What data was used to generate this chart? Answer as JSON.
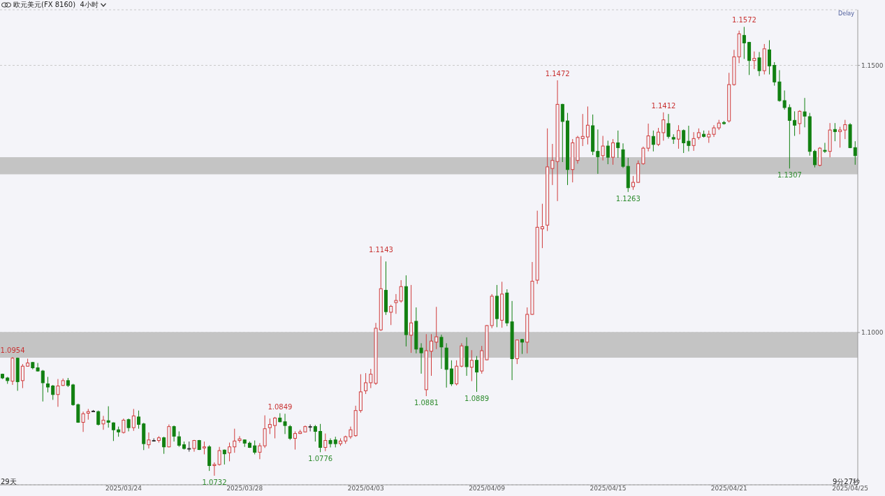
{
  "chart_data": {
    "type": "candlestick",
    "title": "欧元美元(FX 8160)  4小时",
    "categories": [
      null,
      null,
      null,
      null,
      null,
      null,
      null,
      null,
      null,
      null,
      null,
      null,
      null,
      null,
      null,
      null,
      null,
      null,
      null,
      null,
      null,
      null,
      null,
      null,
      "2025/03/24",
      null,
      null,
      null,
      null,
      null,
      null,
      null,
      null,
      null,
      null,
      null,
      null,
      null,
      null,
      null,
      null,
      null,
      null,
      null,
      null,
      null,
      null,
      null,
      "2025/03/28",
      null,
      null,
      null,
      null,
      null,
      null,
      null,
      null,
      null,
      null,
      null,
      null,
      null,
      null,
      null,
      null,
      null,
      null,
      null,
      null,
      null,
      null,
      null,
      "2025/04/03",
      null,
      null,
      null,
      null,
      null,
      null,
      null,
      null,
      null,
      null,
      null,
      null,
      null,
      null,
      null,
      null,
      null,
      null,
      null,
      null,
      null,
      null,
      null,
      "2025/04/09",
      null,
      null,
      null,
      null,
      null,
      null,
      null,
      null,
      null,
      null,
      null,
      null,
      null,
      null,
      null,
      null,
      null,
      null,
      null,
      null,
      null,
      null,
      null,
      "2025/04/15",
      null,
      null,
      null,
      null,
      null,
      null,
      null,
      null,
      null,
      null,
      null,
      null,
      null,
      null,
      null,
      null,
      null,
      null,
      null,
      null,
      null,
      null,
      null,
      "2025/04/21",
      null,
      null,
      null,
      null,
      null,
      null,
      null,
      null,
      null,
      null,
      null,
      null,
      null,
      null,
      null,
      null,
      null,
      null,
      null,
      null,
      null,
      null,
      null,
      "2025/04/25",
      null
    ],
    "ohlc": [
      [
        1.0922,
        1.0923,
        1.0913,
        1.0915
      ],
      [
        1.0915,
        1.0917,
        1.0904,
        1.091
      ],
      [
        1.0909,
        1.0954,
        1.0902,
        1.0952
      ],
      [
        1.0952,
        1.0953,
        1.0891,
        1.0908
      ],
      [
        1.091,
        1.0941,
        1.0896,
        1.0937
      ],
      [
        1.0937,
        1.0951,
        1.0936,
        1.0943
      ],
      [
        1.0944,
        1.0945,
        1.0931,
        1.0934
      ],
      [
        1.0934,
        1.0943,
        1.0927,
        1.0928
      ],
      [
        1.0928,
        1.093,
        1.0871,
        1.0906
      ],
      [
        1.0904,
        1.0917,
        1.0888,
        1.0898
      ],
      [
        1.09,
        1.0902,
        1.0874,
        1.0884
      ],
      [
        1.0884,
        1.0913,
        1.0861,
        1.09
      ],
      [
        1.0901,
        1.0914,
        1.09,
        1.091
      ],
      [
        1.091,
        1.0915,
        1.0898,
        1.0901
      ],
      [
        1.0902,
        1.0904,
        1.0863,
        1.0865
      ],
      [
        1.0865,
        1.0867,
        1.0831,
        1.0832
      ],
      [
        1.0832,
        1.0852,
        1.0814,
        1.0848
      ],
      [
        1.0849,
        1.0857,
        1.0837,
        1.0852
      ],
      [
        1.0853,
        1.0855,
        1.0852,
        1.0853
      ],
      [
        1.0852,
        1.0854,
        1.0826,
        1.0828
      ],
      [
        1.0829,
        1.0844,
        1.0818,
        1.0836
      ],
      [
        1.0835,
        1.0862,
        1.0822,
        1.0832
      ],
      [
        1.0831,
        1.0832,
        1.0797,
        1.0818
      ],
      [
        1.0818,
        1.0824,
        1.0805,
        1.0814
      ],
      [
        1.0813,
        1.0839,
        1.0811,
        1.0836
      ],
      [
        1.0837,
        1.0839,
        1.0815,
        1.0822
      ],
      [
        1.0822,
        1.0857,
        1.0816,
        1.0844
      ],
      [
        1.0842,
        1.0854,
        1.082,
        1.0828
      ],
      [
        1.0829,
        1.0831,
        1.078,
        1.0792
      ],
      [
        1.079,
        1.0813,
        1.0783,
        1.0799
      ],
      [
        1.0798,
        1.0802,
        1.0796,
        1.0798
      ],
      [
        1.0798,
        1.0806,
        1.0794,
        1.0803
      ],
      [
        1.0803,
        1.0805,
        1.0773,
        1.0786
      ],
      [
        1.0786,
        1.0828,
        1.0785,
        1.0824
      ],
      [
        1.0824,
        1.0826,
        1.0796,
        1.0806
      ],
      [
        1.0805,
        1.0815,
        1.0786,
        1.0789
      ],
      [
        1.079,
        1.0796,
        1.0781,
        1.0783
      ],
      [
        1.0783,
        1.0796,
        1.0777,
        1.0783
      ],
      [
        1.0783,
        1.0799,
        1.0777,
        1.0798
      ],
      [
        1.0798,
        1.0799,
        1.078,
        1.0781
      ],
      [
        1.0784,
        1.0796,
        1.0772,
        1.0786
      ],
      [
        1.0786,
        1.0789,
        1.0741,
        1.0751
      ],
      [
        1.0751,
        1.0757,
        1.0732,
        1.0753
      ],
      [
        1.0753,
        1.0786,
        1.0751,
        1.0779
      ],
      [
        1.078,
        1.0781,
        1.0753,
        1.0773
      ],
      [
        1.0775,
        1.0794,
        1.0759,
        1.0786
      ],
      [
        1.0786,
        1.082,
        1.0775,
        1.0797
      ],
      [
        1.0798,
        1.0806,
        1.0794,
        1.0801
      ],
      [
        1.0799,
        1.08,
        1.0786,
        1.0793
      ],
      [
        1.0793,
        1.0796,
        1.0784,
        1.0785
      ],
      [
        1.0788,
        1.0798,
        1.0772,
        1.0776
      ],
      [
        1.0776,
        1.0793,
        1.0763,
        1.0788
      ],
      [
        1.0788,
        1.0845,
        1.0784,
        1.082
      ],
      [
        1.0822,
        1.0839,
        1.081,
        1.0828
      ],
      [
        1.0826,
        1.0842,
        1.0802,
        1.084
      ],
      [
        1.084,
        1.0849,
        1.0832,
        1.0833
      ],
      [
        1.0833,
        1.0848,
        1.081,
        1.0826
      ],
      [
        1.0824,
        1.0827,
        1.0799,
        1.0802
      ],
      [
        1.0802,
        1.0815,
        1.0781,
        1.0811
      ],
      [
        1.0811,
        1.0818,
        1.081,
        1.0814
      ],
      [
        1.0814,
        1.0826,
        1.0813,
        1.0824
      ],
      [
        1.0824,
        1.0828,
        1.0815,
        1.0824
      ],
      [
        1.0824,
        1.0827,
        1.0796,
        1.0815
      ],
      [
        1.0815,
        1.0829,
        1.0776,
        1.0785
      ],
      [
        1.0785,
        1.0811,
        1.0778,
        1.0798
      ],
      [
        1.0798,
        1.0802,
        1.0785,
        1.0792
      ],
      [
        1.0799,
        1.0805,
        1.0785,
        1.0792
      ],
      [
        1.0792,
        1.0802,
        1.0788,
        1.0797
      ],
      [
        1.0797,
        1.0807,
        1.0792,
        1.0805
      ],
      [
        1.0805,
        1.0824,
        1.0801,
        1.0818
      ],
      [
        1.0807,
        1.0863,
        1.0805,
        1.0854
      ],
      [
        1.0854,
        1.0922,
        1.085,
        1.0889
      ],
      [
        1.0891,
        1.0924,
        1.0885,
        1.0906
      ],
      [
        1.0906,
        1.0932,
        1.0896,
        1.0922
      ],
      [
        1.0905,
        1.1018,
        1.0902,
        1.1008
      ],
      [
        1.1005,
        1.1143,
        1.1003,
        1.1082
      ],
      [
        1.1079,
        1.1133,
        1.1033,
        1.1039
      ],
      [
        1.1038,
        1.1052,
        1.1014,
        1.1049
      ],
      [
        1.1056,
        1.1072,
        1.1035,
        1.106
      ],
      [
        1.1059,
        1.1098,
        1.1056,
        1.1086
      ],
      [
        1.1086,
        1.1107,
        1.0974,
        1.0996
      ],
      [
        1.0995,
        1.1089,
        1.0962,
        1.1018
      ],
      [
        1.1021,
        1.1047,
        1.0961,
        1.0969
      ],
      [
        1.0971,
        1.098,
        1.0923,
        1.0962
      ],
      [
        1.0893,
        1.0997,
        1.0881,
        1.0966
      ],
      [
        1.0965,
        1.0997,
        1.0919,
        1.0984
      ],
      [
        1.0982,
        1.1048,
        1.0969,
        1.0992
      ],
      [
        1.0991,
        1.0996,
        1.0932,
        1.0973
      ],
      [
        1.0971,
        1.098,
        1.0897,
        1.0931
      ],
      [
        1.0932,
        1.0948,
        1.09,
        1.0904
      ],
      [
        1.0904,
        1.0948,
        1.0901,
        1.0937
      ],
      [
        1.0937,
        1.098,
        1.0935,
        1.0975
      ],
      [
        1.0974,
        1.0991,
        1.0919,
        1.0936
      ],
      [
        1.0935,
        1.0967,
        1.0909,
        1.0948
      ],
      [
        1.0948,
        1.0956,
        1.0889,
        1.0926
      ],
      [
        1.0928,
        1.0975,
        1.0923,
        1.0966
      ],
      [
        1.0949,
        1.1014,
        1.0948,
        1.1013
      ],
      [
        1.1013,
        1.1072,
        1.1008,
        1.1068
      ],
      [
        1.1068,
        1.1089,
        1.101,
        1.1026
      ],
      [
        1.1023,
        1.1095,
        1.1009,
        1.1072
      ],
      [
        1.1074,
        1.1081,
        1.1012,
        1.1018
      ],
      [
        1.102,
        1.1059,
        1.0911,
        1.0951
      ],
      [
        1.0951,
        1.0987,
        1.0941,
        1.0986
      ],
      [
        1.0987,
        1.0988,
        1.096,
        1.0982
      ],
      [
        1.0982,
        1.1047,
        1.0961,
        1.1034
      ],
      [
        1.1034,
        1.1132,
        1.1033,
        1.1096
      ],
      [
        1.1098,
        1.1228,
        1.1091,
        1.1197
      ],
      [
        1.1194,
        1.1241,
        1.1158,
        1.1198
      ],
      [
        1.1201,
        1.1382,
        1.119,
        1.131
      ],
      [
        1.1307,
        1.1353,
        1.1276,
        1.1322
      ],
      [
        1.132,
        1.1472,
        1.1246,
        1.1427
      ],
      [
        1.1427,
        1.1428,
        1.1319,
        1.1395
      ],
      [
        1.1396,
        1.1411,
        1.1276,
        1.1305
      ],
      [
        1.1305,
        1.1362,
        1.1281,
        1.1355
      ],
      [
        1.1322,
        1.1368,
        1.1316,
        1.1365
      ],
      [
        1.1363,
        1.1409,
        1.1349,
        1.1367
      ],
      [
        1.1366,
        1.1423,
        1.1352,
        1.1388
      ],
      [
        1.1387,
        1.1408,
        1.1332,
        1.1339
      ],
      [
        1.1339,
        1.138,
        1.1297,
        1.1329
      ],
      [
        1.1331,
        1.1368,
        1.1322,
        1.1349
      ],
      [
        1.1349,
        1.1359,
        1.1315,
        1.1328
      ],
      [
        1.1328,
        1.1362,
        1.1314,
        1.1355
      ],
      [
        1.1355,
        1.1378,
        1.1327,
        1.1346
      ],
      [
        1.1342,
        1.1354,
        1.1308,
        1.1311
      ],
      [
        1.1311,
        1.1327,
        1.1263,
        1.1271
      ],
      [
        1.1273,
        1.1293,
        1.1267,
        1.1281
      ],
      [
        1.1281,
        1.1322,
        1.128,
        1.1316
      ],
      [
        1.1316,
        1.1348,
        1.1314,
        1.1345
      ],
      [
        1.1345,
        1.1391,
        1.1339,
        1.1368
      ],
      [
        1.1367,
        1.1378,
        1.1339,
        1.1352
      ],
      [
        1.1352,
        1.1383,
        1.1349,
        1.1375
      ],
      [
        1.1374,
        1.1412,
        1.1359,
        1.1398
      ],
      [
        1.1391,
        1.1409,
        1.1363,
        1.1367
      ],
      [
        1.1365,
        1.1371,
        1.1353,
        1.1362
      ],
      [
        1.1362,
        1.1388,
        1.1344,
        1.1378
      ],
      [
        1.1378,
        1.138,
        1.1336,
        1.1355
      ],
      [
        1.1358,
        1.1387,
        1.1339,
        1.135
      ],
      [
        1.135,
        1.1375,
        1.134,
        1.1363
      ],
      [
        1.1365,
        1.1382,
        1.1361,
        1.1374
      ],
      [
        1.1371,
        1.1378,
        1.1365,
        1.1367
      ],
      [
        1.1366,
        1.1378,
        1.1355,
        1.1371
      ],
      [
        1.1371,
        1.1388,
        1.1366,
        1.1383
      ],
      [
        1.1383,
        1.1398,
        1.1379,
        1.1392
      ],
      [
        1.1393,
        1.1396,
        1.1389,
        1.1391
      ],
      [
        1.1396,
        1.1486,
        1.1393,
        1.1464
      ],
      [
        1.1464,
        1.1529,
        1.1462,
        1.1516
      ],
      [
        1.1516,
        1.1565,
        1.1504,
        1.1559
      ],
      [
        1.1556,
        1.1572,
        1.1512,
        1.1542
      ],
      [
        1.1543,
        1.1544,
        1.1482,
        1.1509
      ],
      [
        1.1509,
        1.1526,
        1.1493,
        1.1513
      ],
      [
        1.1514,
        1.1525,
        1.148,
        1.149
      ],
      [
        1.149,
        1.154,
        1.1483,
        1.1531
      ],
      [
        1.1529,
        1.1547,
        1.1483,
        1.1499
      ],
      [
        1.15,
        1.1506,
        1.1462,
        1.1469
      ],
      [
        1.1469,
        1.1491,
        1.1432,
        1.1434
      ],
      [
        1.1434,
        1.1453,
        1.1417,
        1.1421
      ],
      [
        1.1421,
        1.1427,
        1.1307,
        1.1397
      ],
      [
        1.1397,
        1.1414,
        1.1368,
        1.1388
      ],
      [
        1.1391,
        1.1416,
        1.1371,
        1.1414
      ],
      [
        1.1413,
        1.1439,
        1.1384,
        1.1405
      ],
      [
        1.1404,
        1.1411,
        1.1331,
        1.1339
      ],
      [
        1.1339,
        1.1342,
        1.1309,
        1.1314
      ],
      [
        1.1313,
        1.1347,
        1.1311,
        1.1345
      ],
      [
        1.1341,
        1.1355,
        1.1336,
        1.1339
      ],
      [
        1.1339,
        1.1392,
        1.1328,
        1.1379
      ],
      [
        1.138,
        1.1392,
        1.1358,
        1.1376
      ],
      [
        1.1376,
        1.1385,
        1.1346,
        1.1379
      ],
      [
        1.1379,
        1.1398,
        1.1362,
        1.1389
      ],
      [
        1.1389,
        1.1392,
        1.1345,
        1.1346
      ],
      [
        1.1346,
        1.1358,
        1.1314,
        1.1331
      ]
    ],
    "colors": [
      "#118011",
      "#118011",
      "#d03c3c",
      "#118011",
      "#d03c3c",
      "#d03c3c",
      "#118011",
      "#118011",
      "#118011",
      "#118011",
      "#118011",
      "#d03c3c",
      "#d03c3c",
      "#118011",
      "#118011",
      "#118011",
      "#d03c3c",
      "#d03c3c",
      "#333333",
      "#118011",
      "#d03c3c",
      "#118011",
      "#118011",
      "#118011",
      "#d03c3c",
      "#118011",
      "#d03c3c",
      "#118011",
      "#118011",
      "#d03c3c",
      "#333333",
      "#d03c3c",
      "#118011",
      "#d03c3c",
      "#118011",
      "#118011",
      "#118011",
      "#333333",
      "#d03c3c",
      "#118011",
      "#d03c3c",
      "#118011",
      "#d03c3c",
      "#d03c3c",
      "#118011",
      "#d03c3c",
      "#d03c3c",
      "#d03c3c",
      "#118011",
      "#118011",
      "#118011",
      "#d03c3c",
      "#d03c3c",
      "#d03c3c",
      "#d03c3c",
      "#118011",
      "#118011",
      "#118011",
      "#d03c3c",
      "#d03c3c",
      "#d03c3c",
      "#333333",
      "#118011",
      "#118011",
      "#d03c3c",
      "#118011",
      "#118011",
      "#d03c3c",
      "#d03c3c",
      "#d03c3c",
      "#d03c3c",
      "#d03c3c",
      "#d03c3c",
      "#d03c3c",
      "#d03c3c",
      "#d03c3c",
      "#118011",
      "#d03c3c",
      "#d03c3c",
      "#d03c3c",
      "#118011",
      "#d03c3c",
      "#118011",
      "#118011",
      "#d03c3c",
      "#d03c3c",
      "#d03c3c",
      "#118011",
      "#118011",
      "#118011",
      "#d03c3c",
      "#d03c3c",
      "#118011",
      "#d03c3c",
      "#118011",
      "#d03c3c",
      "#d03c3c",
      "#d03c3c",
      "#118011",
      "#d03c3c",
      "#118011",
      "#118011",
      "#d03c3c",
      "#118011",
      "#d03c3c",
      "#d03c3c",
      "#d03c3c",
      "#d03c3c",
      "#d03c3c",
      "#d03c3c",
      "#d03c3c",
      "#118011",
      "#118011",
      "#d03c3c",
      "#d03c3c",
      "#d03c3c",
      "#d03c3c",
      "#118011",
      "#118011",
      "#d03c3c",
      "#118011",
      "#d03c3c",
      "#118011",
      "#118011",
      "#118011",
      "#d03c3c",
      "#d03c3c",
      "#d03c3c",
      "#d03c3c",
      "#118011",
      "#d03c3c",
      "#d03c3c",
      "#118011",
      "#118011",
      "#d03c3c",
      "#118011",
      "#118011",
      "#d03c3c",
      "#d03c3c",
      "#118011",
      "#d03c3c",
      "#d03c3c",
      "#d03c3c",
      "#118011",
      "#d03c3c",
      "#d03c3c",
      "#d03c3c",
      "#118011",
      "#118011",
      "#d03c3c",
      "#118011",
      "#d03c3c",
      "#118011",
      "#118011",
      "#118011",
      "#118011",
      "#118011",
      "#118011",
      "#d03c3c",
      "#118011",
      "#118011",
      "#118011",
      "#d03c3c",
      "#118011",
      "#d03c3c",
      "#118011",
      "#d03c3c",
      "#d03c3c",
      "#118011",
      "#118011"
    ],
    "ylim": [
      1.0715,
      1.1604
    ],
    "yticks": [
      {
        "value": 1.1,
        "label": "1.1000"
      },
      {
        "value": 1.15,
        "label": "1.1500"
      }
    ],
    "grid": "y",
    "bands": [
      {
        "axis": "y",
        "from": 1.0953,
        "to": 1.1001,
        "color": "#c4c4c4"
      },
      {
        "axis": "y",
        "from": 1.1296,
        "to": 1.1328,
        "color": "#c4c4c4"
      }
    ],
    "annotations": [
      "Delay",
      "29天",
      "9分27秒",
      {
        "text": "1.0954",
        "y": 1.0954
      },
      {
        "text": "1.0732",
        "y": 1.0732
      },
      {
        "text": "1.0849",
        "y": 1.0849
      },
      {
        "text": "1.0776",
        "y": 1.0776
      },
      {
        "text": "1.1143",
        "y": 1.1143
      },
      {
        "text": "1.0881",
        "y": 1.0881
      },
      {
        "text": "1.0889",
        "y": 1.0889
      },
      {
        "text": "1.1472",
        "y": 1.1472
      },
      {
        "text": "1.1263",
        "y": 1.1263
      },
      {
        "text": "1.1412",
        "y": 1.1412
      },
      {
        "text": "1.1572",
        "y": 1.1572
      },
      {
        "text": "1.1307",
        "y": 1.1307
      }
    ]
  }
}
